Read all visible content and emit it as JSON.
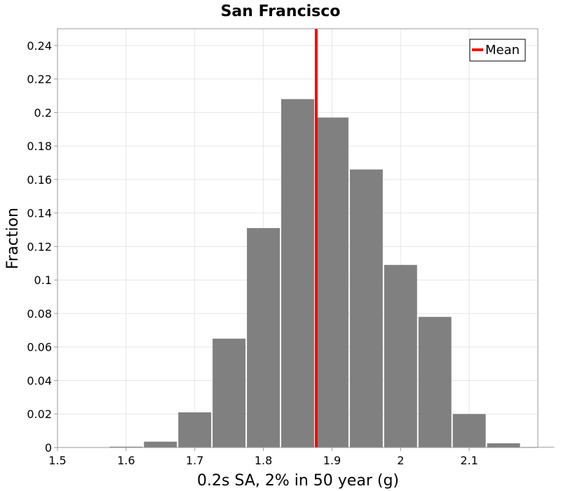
{
  "chart_data": {
    "type": "bar",
    "title": "San Francisco",
    "xlabel": "0.2s SA, 2% in 50 year (g)",
    "ylabel": "Fraction",
    "xlim": [
      1.5,
      2.2
    ],
    "ylim": [
      0,
      0.25
    ],
    "grid": true,
    "bin_width": 0.05,
    "bins": [
      {
        "x": 1.55,
        "value": 0.0002
      },
      {
        "x": 1.6,
        "value": 0.0005
      },
      {
        "x": 1.65,
        "value": 0.0035
      },
      {
        "x": 1.7,
        "value": 0.021
      },
      {
        "x": 1.75,
        "value": 0.065
      },
      {
        "x": 1.8,
        "value": 0.131
      },
      {
        "x": 1.85,
        "value": 0.208
      },
      {
        "x": 1.9,
        "value": 0.197
      },
      {
        "x": 1.95,
        "value": 0.166
      },
      {
        "x": 2.0,
        "value": 0.109
      },
      {
        "x": 2.05,
        "value": 0.078
      },
      {
        "x": 2.1,
        "value": 0.02
      },
      {
        "x": 2.15,
        "value": 0.0025
      },
      {
        "x": 2.2,
        "value": 0.0003
      }
    ],
    "bar_color": "#808080",
    "mean": {
      "label": "Mean",
      "value": 1.877,
      "color": "#ff0000"
    },
    "legend": {
      "entries": [
        "Mean"
      ],
      "position": "top-right"
    },
    "x_ticks": [
      {
        "value": 1.5,
        "label": "1.5"
      },
      {
        "value": 1.6,
        "label": "1.6"
      },
      {
        "value": 1.7,
        "label": "1.7"
      },
      {
        "value": 1.8,
        "label": "1.8"
      },
      {
        "value": 1.9,
        "label": "1.9"
      },
      {
        "value": 2.0,
        "label": "2"
      },
      {
        "value": 2.1,
        "label": "2.1"
      }
    ],
    "y_ticks": [
      {
        "value": 0,
        "label": "0"
      },
      {
        "value": 0.02,
        "label": "0.02"
      },
      {
        "value": 0.04,
        "label": "0.04"
      },
      {
        "value": 0.06,
        "label": "0.06"
      },
      {
        "value": 0.08,
        "label": "0.08"
      },
      {
        "value": 0.1,
        "label": "0.1"
      },
      {
        "value": 0.12,
        "label": "0.12"
      },
      {
        "value": 0.14,
        "label": "0.14"
      },
      {
        "value": 0.16,
        "label": "0.16"
      },
      {
        "value": 0.18,
        "label": "0.18"
      },
      {
        "value": 0.2,
        "label": "0.2"
      },
      {
        "value": 0.22,
        "label": "0.22"
      },
      {
        "value": 0.24,
        "label": "0.24"
      }
    ]
  }
}
